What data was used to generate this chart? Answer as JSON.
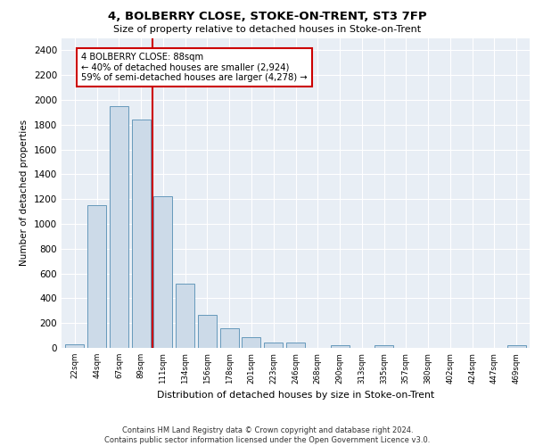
{
  "title": "4, BOLBERRY CLOSE, STOKE-ON-TRENT, ST3 7FP",
  "subtitle": "Size of property relative to detached houses in Stoke-on-Trent",
  "xlabel": "Distribution of detached houses by size in Stoke-on-Trent",
  "ylabel": "Number of detached properties",
  "categories": [
    "22sqm",
    "44sqm",
    "67sqm",
    "89sqm",
    "111sqm",
    "134sqm",
    "156sqm",
    "178sqm",
    "201sqm",
    "223sqm",
    "246sqm",
    "268sqm",
    "290sqm",
    "313sqm",
    "335sqm",
    "357sqm",
    "380sqm",
    "402sqm",
    "424sqm",
    "447sqm",
    "469sqm"
  ],
  "values": [
    30,
    1150,
    1950,
    1840,
    1220,
    520,
    265,
    155,
    85,
    45,
    40,
    0,
    25,
    0,
    20,
    0,
    0,
    0,
    0,
    0,
    20
  ],
  "bar_color": "#ccdae8",
  "bar_edge_color": "#6699bb",
  "vline_color": "#cc0000",
  "vline_index": 3.5,
  "annotation_text": "4 BOLBERRY CLOSE: 88sqm\n← 40% of detached houses are smaller (2,924)\n59% of semi-detached houses are larger (4,278) →",
  "annotation_box_color": "white",
  "annotation_box_edge_color": "#cc0000",
  "ylim": [
    0,
    2500
  ],
  "yticks": [
    0,
    200,
    400,
    600,
    800,
    1000,
    1200,
    1400,
    1600,
    1800,
    2000,
    2200,
    2400
  ],
  "footer_text": "Contains HM Land Registry data © Crown copyright and database right 2024.\nContains public sector information licensed under the Open Government Licence v3.0.",
  "plot_bg_color": "#e8eef5"
}
